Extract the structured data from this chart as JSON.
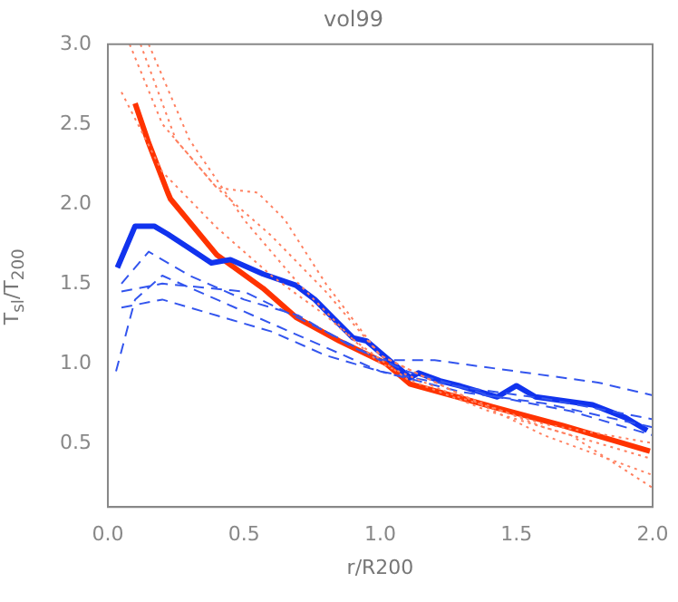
{
  "chart_data": {
    "type": "line",
    "title": "vol99",
    "xlabel": "r/R200",
    "ylabel": "T$_{sl}$/T$_{200}$",
    "xlim": [
      0,
      2
    ],
    "xticks": [
      {
        "value": 0,
        "label": "0.0"
      },
      0.5,
      {
        "value": 1,
        "label": "1.0"
      },
      1.5,
      {
        "value": 2,
        "label": "2.0"
      }
    ],
    "ylim": [
      0.1,
      3
    ],
    "yticks": [
      0.5,
      {
        "value": 1,
        "label": "1.0"
      },
      1.5,
      {
        "value": 2,
        "label": "2.0"
      },
      2.5,
      {
        "value": 3,
        "label": "3.0"
      }
    ],
    "grid": false,
    "legend": false,
    "marker": "none",
    "series": [
      {
        "color": "#ff8060",
        "line_style": "dotted",
        "x": [
          0.08,
          0.2,
          0.4,
          0.6,
          0.8,
          1.0,
          1.3,
          1.6,
          2.0
        ],
        "values": [
          3.0,
          2.5,
          2.1,
          1.8,
          1.45,
          1.05,
          0.8,
          0.6,
          0.4
        ]
      },
      {
        "color": "#ff8060",
        "line_style": "dotted",
        "x": [
          0.12,
          0.25,
          0.4,
          0.55,
          0.65,
          0.8,
          1.0,
          1.3,
          1.6,
          2.0
        ],
        "values": [
          3.0,
          2.4,
          2.1,
          2.07,
          1.9,
          1.5,
          1.05,
          0.8,
          0.55,
          0.3
        ]
      },
      {
        "color": "#ff8060",
        "line_style": "dotted",
        "x": [
          0.15,
          0.3,
          0.5,
          0.7,
          0.9,
          1.1,
          1.4,
          1.7,
          2.0
        ],
        "values": [
          3.0,
          2.4,
          1.9,
          1.5,
          1.15,
          0.9,
          0.7,
          0.55,
          0.22
        ]
      },
      {
        "color": "#ff8060",
        "line_style": "dotted",
        "x": [
          0.05,
          0.2,
          0.4,
          0.6,
          0.8,
          1.0,
          1.3,
          1.6,
          2.0
        ],
        "values": [
          2.7,
          2.2,
          1.85,
          1.55,
          1.3,
          1.0,
          0.78,
          0.62,
          0.5
        ]
      },
      {
        "color": "#3355ee",
        "line_style": "dashed",
        "x": [
          0.05,
          0.2,
          0.5,
          0.8,
          1.0,
          1.2,
          1.5,
          1.8,
          2.0
        ],
        "values": [
          1.45,
          1.5,
          1.45,
          1.2,
          1.02,
          1.02,
          0.95,
          0.88,
          0.8
        ]
      },
      {
        "color": "#3355ee",
        "line_style": "dashed",
        "x": [
          0.03,
          0.1,
          0.2,
          0.4,
          0.6,
          0.8,
          1.0,
          1.3,
          1.6,
          2.0
        ],
        "values": [
          0.95,
          1.4,
          1.55,
          1.4,
          1.25,
          1.1,
          0.95,
          0.82,
          0.75,
          0.6
        ]
      },
      {
        "color": "#3355ee",
        "line_style": "dashed",
        "x": [
          0.05,
          0.15,
          0.3,
          0.5,
          0.7,
          0.9,
          1.1,
          1.4,
          1.7,
          2.0
        ],
        "values": [
          1.5,
          1.7,
          1.55,
          1.4,
          1.3,
          1.1,
          0.95,
          0.8,
          0.7,
          0.55
        ]
      },
      {
        "color": "#3355ee",
        "line_style": "dashed",
        "x": [
          0.05,
          0.2,
          0.4,
          0.6,
          0.8,
          1.0,
          1.3,
          1.6,
          2.0
        ],
        "values": [
          1.35,
          1.4,
          1.3,
          1.2,
          1.05,
          0.95,
          0.85,
          0.78,
          0.65
        ]
      },
      {
        "color": "#1133ee",
        "line_style": "solid",
        "x": [
          0.035,
          0.1,
          0.17,
          0.22,
          0.3,
          0.38,
          0.45,
          0.57,
          0.69,
          0.76,
          0.83,
          0.9,
          0.95,
          1.04,
          1.11,
          1.14,
          1.22,
          1.29,
          1.43,
          1.5,
          1.57,
          1.78,
          1.9,
          1.98
        ],
        "values": [
          1.6,
          1.86,
          1.86,
          1.81,
          1.72,
          1.63,
          1.65,
          1.56,
          1.49,
          1.4,
          1.28,
          1.16,
          1.14,
          1.01,
          0.91,
          0.94,
          0.89,
          0.86,
          0.79,
          0.86,
          0.79,
          0.74,
          0.66,
          0.58
        ]
      },
      {
        "color": "#ff3300",
        "line_style": "solid",
        "x": [
          0.1,
          0.15,
          0.22,
          0.23,
          0.4,
          0.57,
          0.69,
          0.85,
          1.02,
          1.11,
          1.43,
          1.67,
          1.99
        ],
        "values": [
          2.63,
          2.38,
          2.07,
          2.03,
          1.68,
          1.47,
          1.29,
          1.14,
          1.0,
          0.87,
          0.72,
          0.61,
          0.45
        ]
      }
    ]
  }
}
